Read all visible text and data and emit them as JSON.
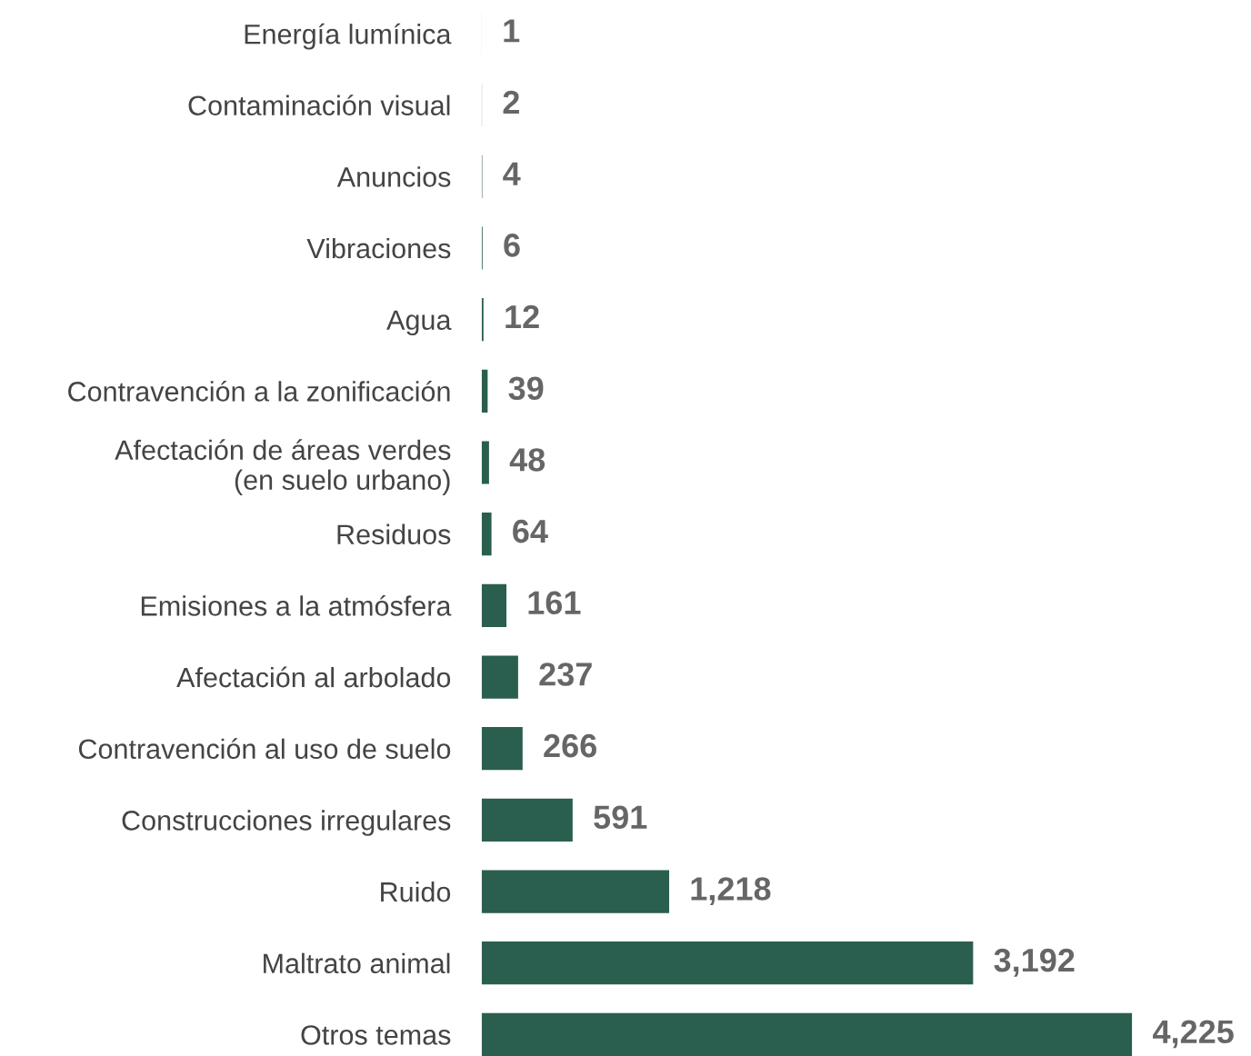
{
  "chart_data": {
    "type": "bar",
    "orientation": "horizontal",
    "categories": [
      "Energía lumínica",
      "Contaminación visual",
      "Anuncios",
      "Vibraciones",
      "Agua",
      "Contravención a la zonificación",
      "Afectación de áreas verdes\n(en suelo urbano)",
      "Residuos",
      "Emisiones a la atmósfera",
      "Afectación al arbolado",
      "Contravención al uso de suelo",
      "Construcciones irregulares",
      "Ruido",
      "Maltrato animal",
      "Otros temas"
    ],
    "values": [
      1,
      2,
      4,
      6,
      12,
      39,
      48,
      64,
      161,
      237,
      266,
      591,
      1218,
      3192,
      4225
    ],
    "value_labels": [
      "1",
      "2",
      "4",
      "6",
      "12",
      "39",
      "48",
      "64",
      "161",
      "237",
      "266",
      "591",
      "1,218",
      "3,192",
      "4,225"
    ],
    "color": "#2a5e4e",
    "grid": false,
    "legend": false
  }
}
